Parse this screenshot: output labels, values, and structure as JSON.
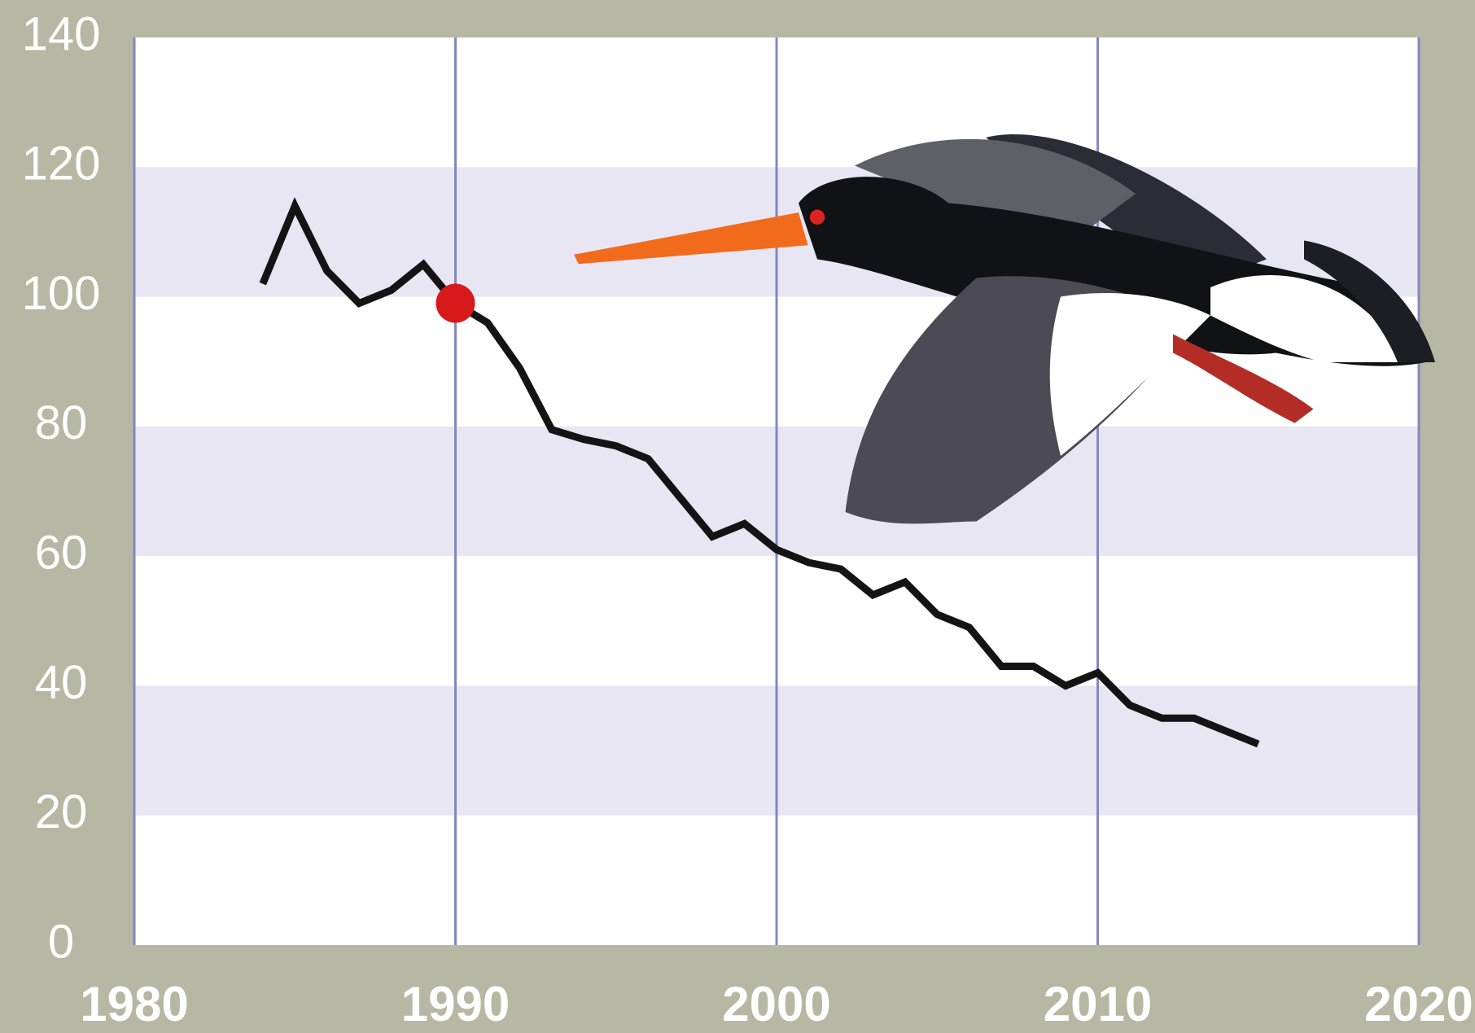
{
  "chart_data": {
    "type": "line",
    "x": [
      1984,
      1985,
      1986,
      1987,
      1988,
      1989,
      1990,
      1991,
      1992,
      1993,
      1994,
      1995,
      1996,
      1997,
      1998,
      1999,
      2000,
      2001,
      2002,
      2003,
      2004,
      2005,
      2006,
      2007,
      2008,
      2009,
      2010,
      2011,
      2012,
      2013,
      2014,
      2015
    ],
    "series": [
      {
        "color": "#141414",
        "values": [
          102,
          114,
          104,
          99,
          101,
          105,
          99,
          96,
          89,
          79.5,
          78,
          77,
          75,
          69,
          63,
          65,
          61,
          59,
          58,
          54,
          56,
          51,
          49,
          43,
          43,
          40,
          42,
          37,
          35,
          35,
          33,
          31
        ]
      }
    ],
    "highlight": {
      "x": 1990,
      "value": 99,
      "color": "#d7191c"
    },
    "xlim": [
      1980,
      2020
    ],
    "xticks": [
      1980,
      1990,
      2000,
      2010,
      2020
    ],
    "ylim": [
      0,
      140
    ],
    "yticks": [
      0,
      20,
      40,
      60,
      80,
      100,
      120,
      140
    ],
    "bands": [
      [
        20,
        40
      ],
      [
        60,
        80
      ],
      [
        100,
        120
      ]
    ],
    "band_color": "#e8e6f3",
    "plot_color": "#ffffff",
    "vgrid_color": "#8288c2"
  }
}
